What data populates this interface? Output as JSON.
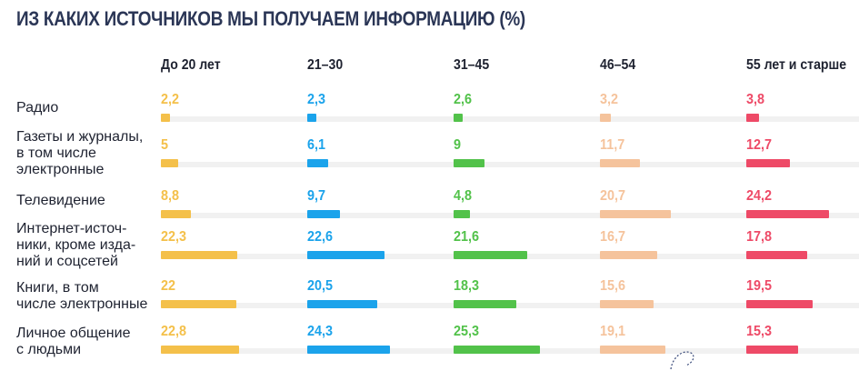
{
  "title": "ИЗ КАКИХ ИСТОЧНИКОВ МЫ ПОЛУЧАЕМ ИНФОРМАЦИЮ (%)",
  "columns": [
    "До 20 лет",
    "21–30",
    "31–45",
    "46–54",
    "55 лет и старше"
  ],
  "colors": [
    "#f4c04a",
    "#1ba3eb",
    "#52c24a",
    "#f5c39c",
    "#ee4a67"
  ],
  "rows": [
    "Радио",
    "Газеты и журналы,\nв том числе\nэлектронные",
    "Телевидение",
    "Интернет-источ-\nники, кроме изда-\nний и соцсетей",
    "Книги, в том\nчисле электронные",
    "Личное общение\nс людьми"
  ],
  "chart_data": {
    "type": "bar",
    "title": "ИЗ КАКИХ ИСТОЧНИКОВ МЫ ПОЛУЧАЕМ ИНФОРМАЦИЮ (%)",
    "categories": [
      "Радио",
      "Газеты и журналы, в том числе электронные",
      "Телевидение",
      "Интернет-источники, кроме изданий и соцсетей",
      "Книги, в том числе электронные",
      "Личное общение с людьми"
    ],
    "series": [
      {
        "name": "До 20 лет",
        "values": [
          2.2,
          5,
          8.8,
          22.3,
          22,
          22.8
        ],
        "labels": [
          "2,2",
          "5",
          "8,8",
          "22,3",
          "22",
          "22,8"
        ]
      },
      {
        "name": "21–30",
        "values": [
          2.3,
          6.1,
          9.7,
          22.6,
          20.5,
          24.3
        ],
        "labels": [
          "2,3",
          "6,1",
          "9,7",
          "22,6",
          "20,5",
          "24,3"
        ]
      },
      {
        "name": "31–45",
        "values": [
          2.6,
          9,
          4.8,
          21.6,
          18.3,
          25.3
        ],
        "labels": [
          "2,6",
          "9",
          "4,8",
          "21,6",
          "18,3",
          "25,3"
        ]
      },
      {
        "name": "46–54",
        "values": [
          3.2,
          11.7,
          20.7,
          16.7,
          15.6,
          19.1
        ],
        "labels": [
          "3,2",
          "11,7",
          "20,7",
          "16,7",
          "15,6",
          "19,1"
        ]
      },
      {
        "name": "55 лет и старше",
        "values": [
          3.8,
          12.7,
          24.2,
          17.8,
          19.5,
          15.3
        ],
        "labels": [
          "3,8",
          "12,7",
          "24,2",
          "17,8",
          "19,5",
          "15,3"
        ]
      }
    ],
    "xlim": [
      0,
      40
    ],
    "grid": false,
    "legend": "none"
  }
}
